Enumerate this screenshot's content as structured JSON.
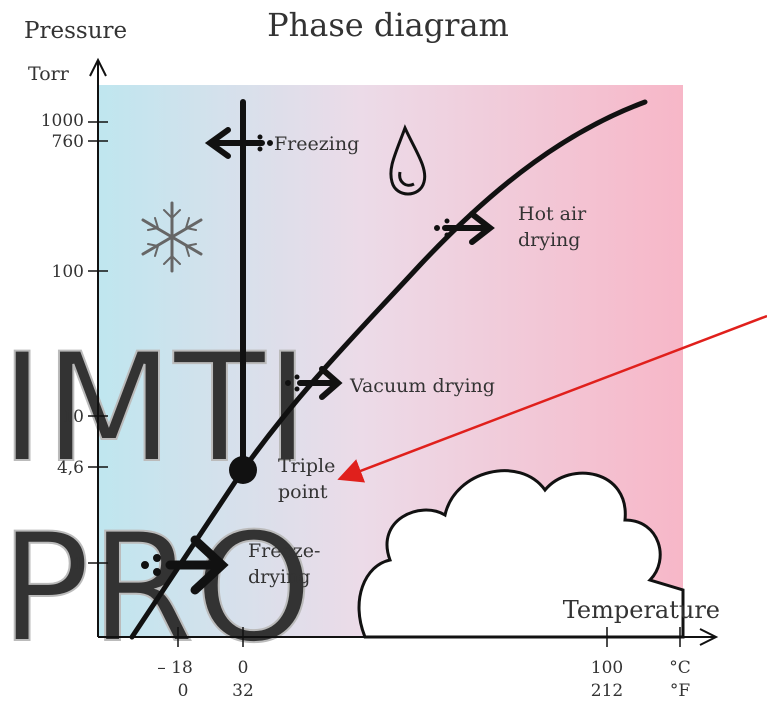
{
  "title": "Phase diagram",
  "y_axis": {
    "label": "Pressure",
    "unit": "Torr",
    "ticks": [
      "1000",
      "760",
      "100",
      "10",
      "4,6",
      "1"
    ]
  },
  "x_axis": {
    "label": "Temperature",
    "celsius": [
      "– 18",
      "0",
      "100"
    ],
    "celsius_unit": "°C",
    "fahrenheit": [
      "0",
      "32",
      "212"
    ],
    "fahrenheit_unit": "°F"
  },
  "labels": {
    "freezing": [
      "Freezing"
    ],
    "hot_air_drying": [
      "Hot air",
      "drying"
    ],
    "vacuum_drying": [
      "Vacuum drying"
    ],
    "triple_point": [
      "Triple",
      "point"
    ],
    "freeze_drying": [
      "Freeze-",
      "drying"
    ]
  },
  "watermark": [
    "IMTI",
    "PRO"
  ]
}
